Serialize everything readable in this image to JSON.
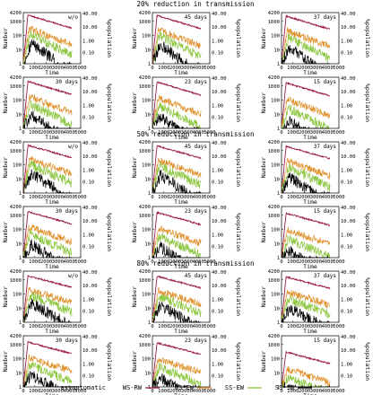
{
  "figure": {
    "sections": [
      {
        "title": "20% reduction in transmission"
      },
      {
        "title": "50% reduction in transmission"
      },
      {
        "title": "80% reduction in transmission"
      }
    ],
    "panel_labels": [
      "w/o",
      "45 days",
      "37 days",
      "30 days",
      "23 days",
      "15 days"
    ]
  },
  "legend": {
    "prefix": "asymptomatic",
    "items": [
      {
        "label": "WS-RW",
        "color": "#9b1b4a"
      },
      {
        "label": "WS-EW",
        "color": "#e0902a"
      },
      {
        "label": "SS-EW",
        "color": "#8cc63e"
      },
      {
        "label": "SS-SW",
        "color": "#000000"
      }
    ]
  },
  "chart_data": {
    "type": "line",
    "layout": "3 sections x 2 rows x 3 panels",
    "xlabel": "Time",
    "ylabel": "Number",
    "y2label": "%population",
    "xlim": [
      0,
      5000
    ],
    "xticks": [
      0,
      1000,
      2000,
      3000,
      4000,
      5000
    ],
    "yscale": "log",
    "ylim": [
      1,
      4200
    ],
    "yticks": [
      1,
      10,
      100,
      1000,
      4200
    ],
    "y2ticks": [
      "0.10",
      "1.00",
      "10.00",
      "40.00"
    ],
    "series": [
      {
        "name": "WS-RW",
        "color": "#9b1b4a"
      },
      {
        "name": "WS-EW",
        "color": "#e0902a"
      },
      {
        "name": "SS-EW",
        "color": "#8cc63e"
      },
      {
        "name": "SS-SW",
        "color": "#000000"
      }
    ],
    "series_shape": {
      "WS-RW": {
        "peak": 2800,
        "peak_time": 400
      },
      "WS-EW": {
        "peak": 300,
        "peak_time": 500
      },
      "SS-EW": {
        "peak": 120,
        "peak_time": 600
      },
      "SS-SW": {
        "peak": 30,
        "peak_time": 700
      }
    }
  }
}
